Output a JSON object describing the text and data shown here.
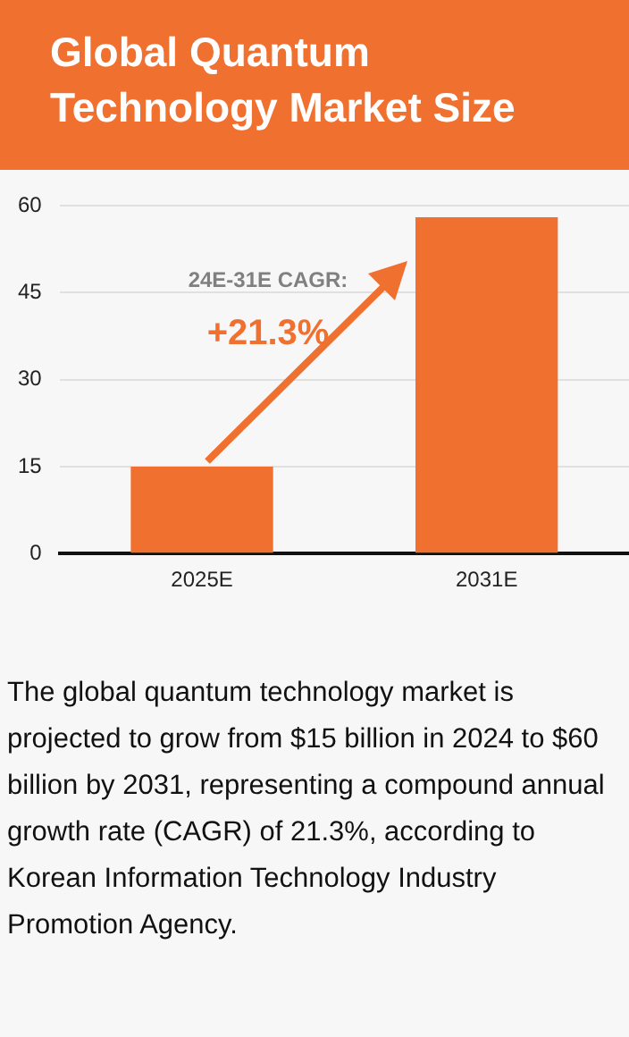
{
  "chart_data": {
    "type": "bar",
    "title": "Global Quantum Technology Market Size",
    "categories": [
      "2025E",
      "2031E"
    ],
    "values": [
      15,
      58
    ],
    "color": "#f07030",
    "ylim": [
      0,
      60
    ],
    "yticks": [
      0,
      15,
      30,
      45,
      60
    ],
    "grid": "y",
    "annotations": [
      "24E-31E CAGR:",
      "+21.3%",
      "The global quantum technology market is projected to grow from $15 billion in 2024 to $60 billion by 2031, representing a compound annual growth rate (CAGR) of 21.3%, according to Korean Information Technology Industry Promotion Agency."
    ]
  }
}
